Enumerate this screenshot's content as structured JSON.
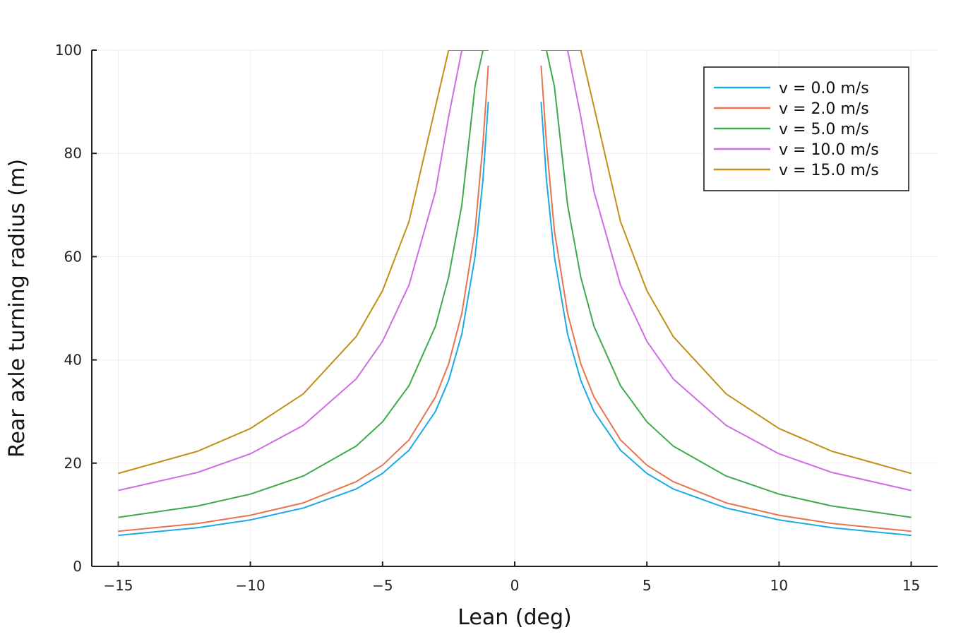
{
  "chart_data": {
    "type": "line",
    "title": "",
    "xlabel": "Lean (deg)",
    "ylabel": "Rear axle turning radius (m)",
    "xlim": [
      -16,
      16
    ],
    "ylim": [
      0,
      100
    ],
    "xticks": [
      -15,
      -10,
      -5,
      0,
      5,
      10,
      15
    ],
    "xtick_labels": [
      "−15",
      "−10",
      "−5",
      "0",
      "5",
      "10",
      "15"
    ],
    "yticks": [
      0,
      20,
      40,
      60,
      80,
      100
    ],
    "ytick_labels": [
      "0",
      "20",
      "40",
      "60",
      "80",
      "100"
    ],
    "grid": true,
    "legend_position": "top-right",
    "x": [
      -15,
      -12,
      -10,
      -8,
      -6,
      -5,
      -4,
      -3,
      -2.5,
      -2,
      -1.5,
      -1.2,
      -1,
      1,
      1.2,
      1.5,
      2,
      2.5,
      3,
      4,
      5,
      6,
      8,
      10,
      12,
      15
    ],
    "series": [
      {
        "name": "v = 0.0 m/s",
        "color": "#1ca9e6",
        "values": [
          6.0,
          7.5,
          9.0,
          11.3,
          15.0,
          18.0,
          22.5,
          30.0,
          36.0,
          45.0,
          60.0,
          75.0,
          90.0,
          90.0,
          75.0,
          60.0,
          45.0,
          36.0,
          30.0,
          22.5,
          18.0,
          15.0,
          11.3,
          9.0,
          7.5,
          6.0
        ]
      },
      {
        "name": "v = 2.0 m/s",
        "color": "#e8734f",
        "values": [
          6.8,
          8.3,
          9.9,
          12.3,
          16.4,
          19.6,
          24.5,
          32.8,
          39.2,
          49.0,
          65.0,
          82.0,
          97.0,
          97.0,
          82.0,
          65.0,
          49.0,
          39.2,
          32.8,
          24.5,
          19.6,
          16.4,
          12.3,
          9.9,
          8.3,
          6.8
        ]
      },
      {
        "name": "v = 5.0 m/s",
        "color": "#3cab4a",
        "values": [
          9.5,
          11.7,
          14.0,
          17.5,
          23.3,
          28.0,
          35.0,
          46.5,
          56.0,
          70.0,
          93.0,
          100,
          100,
          100,
          100,
          93.0,
          70.0,
          56.0,
          46.5,
          35.0,
          28.0,
          23.3,
          17.5,
          14.0,
          11.7,
          9.5
        ]
      },
      {
        "name": "v = 10.0 m/s",
        "color": "#cf6ce6",
        "values": [
          14.7,
          18.2,
          21.8,
          27.3,
          36.3,
          43.6,
          54.5,
          72.6,
          87.1,
          100,
          100,
          100,
          100,
          100,
          100,
          100,
          100,
          87.1,
          72.6,
          54.5,
          43.6,
          36.3,
          27.3,
          21.8,
          18.2,
          14.7
        ]
      },
      {
        "name": "v = 15.0 m/s",
        "color": "#bf9016",
        "values": [
          18.0,
          22.3,
          26.7,
          33.4,
          44.5,
          53.4,
          66.8,
          89.0,
          100,
          100,
          100,
          100,
          100,
          100,
          100,
          100,
          100,
          100,
          89.0,
          66.8,
          53.4,
          44.5,
          33.4,
          26.7,
          22.3,
          18.0
        ]
      }
    ]
  }
}
